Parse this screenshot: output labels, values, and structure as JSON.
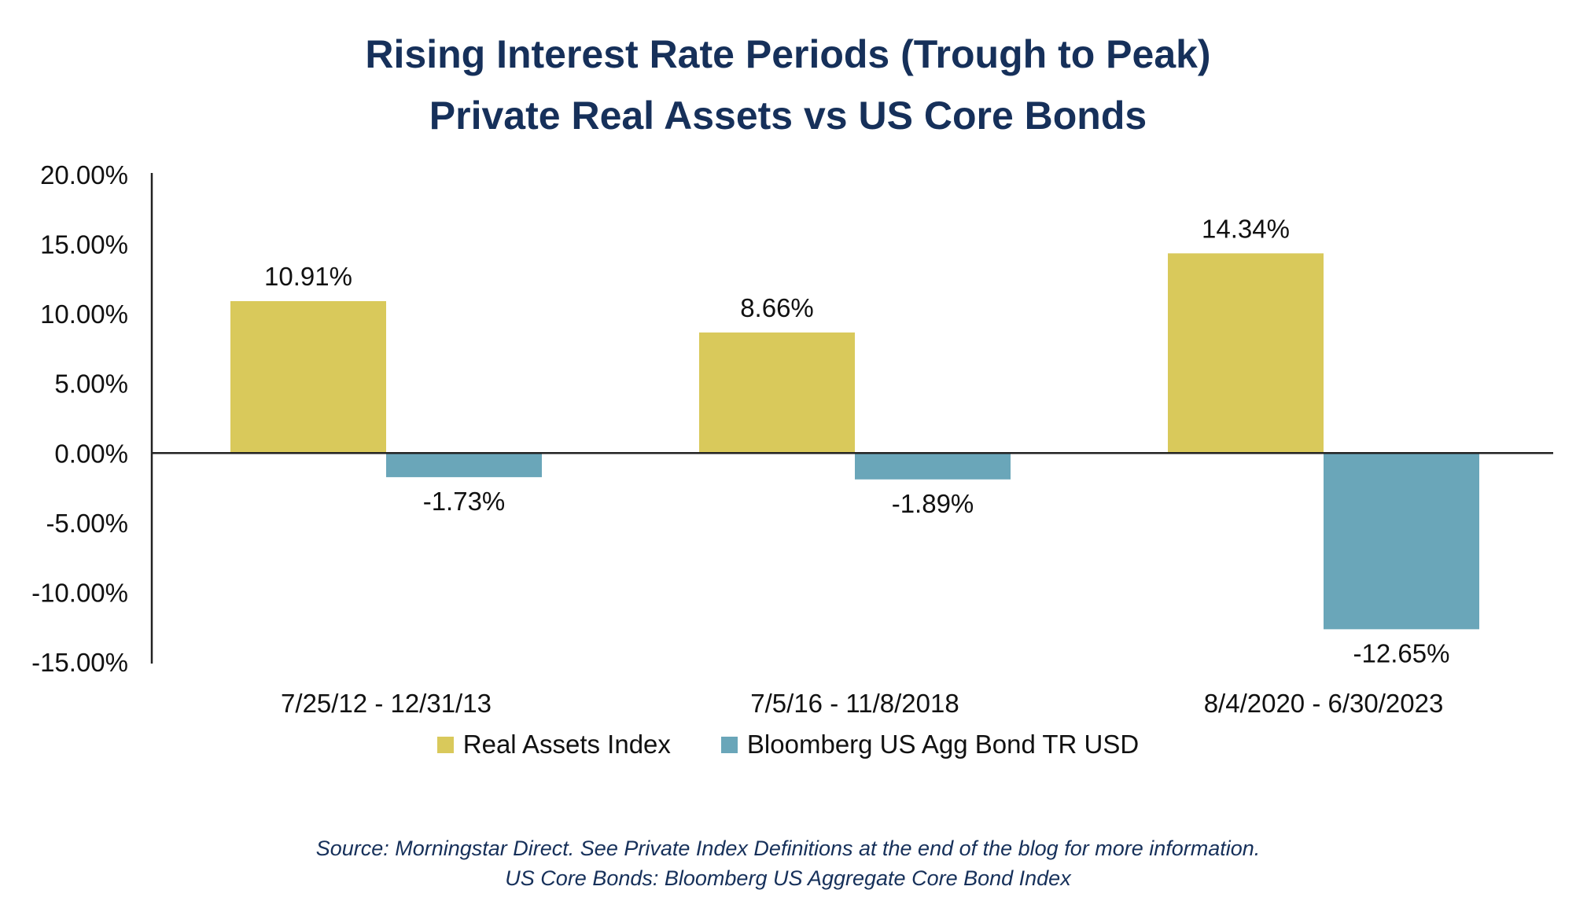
{
  "chart_data": {
    "type": "bar",
    "title": "Rising Interest Rate Periods (Trough to Peak)",
    "subtitle": "Private Real Assets vs US Core Bonds",
    "categories": [
      "7/25/12 - 12/31/13",
      "7/5/16 - 11/8/2018",
      "8/4/2020 - 6/30/2023"
    ],
    "series": [
      {
        "name": "Real Assets Index",
        "color": "#d9c95b",
        "values": [
          10.91,
          8.66,
          14.34
        ],
        "labels": [
          "10.91%",
          "8.66%",
          "14.34%"
        ]
      },
      {
        "name": "Bloomberg US Agg Bond TR USD",
        "color": "#6aa6b9",
        "values": [
          -1.73,
          -1.89,
          -12.65
        ],
        "labels": [
          "-1.73%",
          "-1.89%",
          "-12.65%"
        ]
      }
    ],
    "ylim": [
      -15,
      20
    ],
    "yticks": [
      20,
      15,
      10,
      5,
      0,
      -5,
      -10,
      -15
    ],
    "ytick_labels": [
      "20.00%",
      "15.00%",
      "10.00%",
      "5.00%",
      "0.00%",
      "-5.00%",
      "-10.00%",
      "-15.00%"
    ],
    "xlabel": "",
    "ylabel": "",
    "grid": false,
    "legend": "bottom-center"
  },
  "source": {
    "line1": "Source: Morningstar Direct. See Private Index Definitions at the end of the blog for more information.",
    "line2": "US Core Bonds: Bloomberg US Aggregate Core Bond Index"
  },
  "colors": {
    "title": "#16305a",
    "axis": "#222222",
    "text": "#111111"
  }
}
